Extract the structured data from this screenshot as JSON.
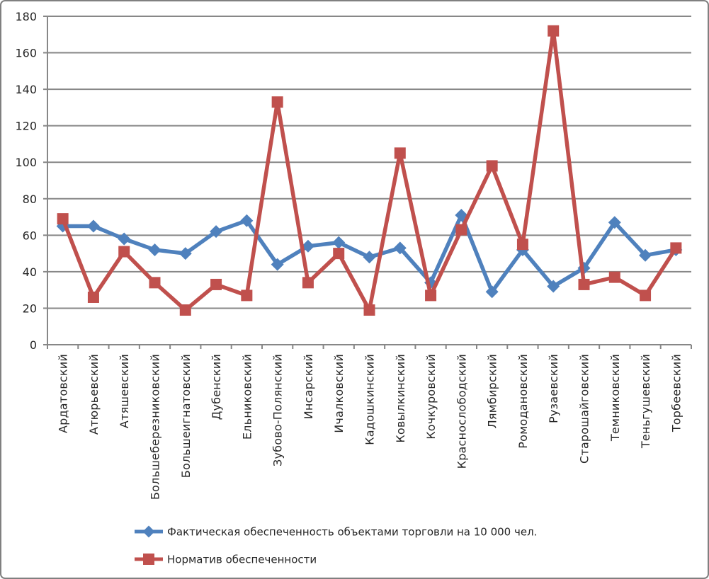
{
  "frame": {
    "border_color": "#808080",
    "background_color": "#ffffff"
  },
  "chart_data": {
    "type": "line",
    "title": "",
    "xlabel": "",
    "ylabel": "",
    "categories": [
      "Ардатовский",
      "Атюрьевский",
      "Атяшевский",
      "Большеберезниковский",
      "Большеигнатовский",
      "Дубенский",
      "Ельниковский",
      "Зубово-Полянский",
      "Инсарский",
      "Ичалковский",
      "Кадошкинский",
      "Ковылкинский",
      "Кочкуровский",
      "Краснослободский",
      "Лямбирский",
      "Ромодановский",
      "Рузаевский",
      "Старошайговский",
      "Темниковский",
      "Теньгушевский",
      "Торбеевский"
    ],
    "series": [
      {
        "name": "Фактическая обеспеченность объектами торговли на 10 000 чел.",
        "color": "#4F81BD",
        "marker": "diamond",
        "values": [
          65,
          65,
          58,
          52,
          50,
          62,
          68,
          44,
          54,
          56,
          48,
          53,
          34,
          71,
          29,
          52,
          32,
          42,
          67,
          49,
          52
        ]
      },
      {
        "name": "Норматив обеспеченности",
        "color": "#C0504D",
        "marker": "square",
        "values": [
          69,
          26,
          51,
          34,
          19,
          33,
          27,
          133,
          34,
          50,
          19,
          105,
          27,
          63,
          98,
          55,
          172,
          33,
          37,
          27,
          53
        ]
      }
    ],
    "ylim": [
      0,
      180
    ],
    "ytick_step": 20,
    "ytick_labels": [
      "0",
      "20",
      "40",
      "60",
      "80",
      "100",
      "120",
      "140",
      "160",
      "180"
    ],
    "grid": "horizontal",
    "gridline_color": "#878787",
    "axis_color": "#808080",
    "text_color": "#262626",
    "legend_position": "bottom-left",
    "legend_entries": [
      "Фактическая обеспеченность объектами торговли на 10 000 чел.",
      "Норматив обеспеченности"
    ]
  }
}
